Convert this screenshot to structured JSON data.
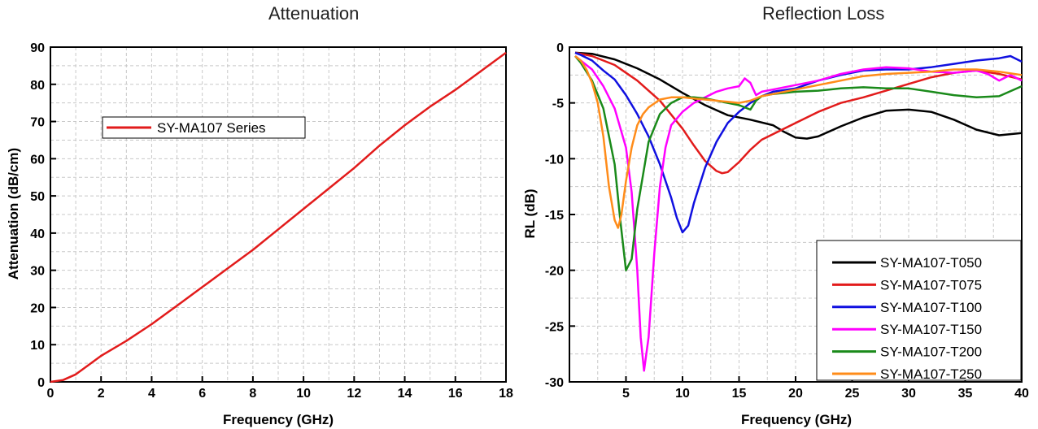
{
  "chart_data": [
    {
      "type": "line",
      "title": "Attenuation",
      "xlabel": "Frequency (GHz)",
      "ylabel": "Attenuation (dB/cm)",
      "xlim": [
        0,
        18
      ],
      "ylim": [
        0,
        90
      ],
      "xticks": [
        "0",
        "2",
        "4",
        "6",
        "8",
        "10",
        "12",
        "14",
        "16",
        "18"
      ],
      "yticks": [
        "0",
        "10",
        "20",
        "30",
        "40",
        "50",
        "60",
        "70",
        "80",
        "90"
      ],
      "grid": true,
      "legend_position": "top-left",
      "series": [
        {
          "name": "SY-MA107 Series",
          "color": "#e21b1b",
          "x": [
            0,
            0.5,
            1,
            1.5,
            2,
            3,
            4,
            5,
            6,
            7,
            8,
            9,
            10,
            11,
            12,
            13,
            14,
            15,
            16,
            17,
            18
          ],
          "y": [
            0,
            0.5,
            2,
            4.5,
            7,
            11,
            15.5,
            20.5,
            25.5,
            30.5,
            35.5,
            41,
            46.5,
            52,
            57.5,
            63.5,
            69,
            74,
            78.5,
            83.5,
            88.5
          ]
        }
      ]
    },
    {
      "type": "line",
      "title": "Reflection Loss",
      "xlabel": "Frequency (GHz)",
      "ylabel": "RL (dB)",
      "xlim": [
        0,
        40
      ],
      "ylim": [
        -30,
        0
      ],
      "xticks": [
        "5",
        "10",
        "15",
        "20",
        "25",
        "30",
        "35",
        "40"
      ],
      "yticks": [
        "0",
        "-5",
        "-10",
        "-15",
        "-20",
        "-25",
        "-30"
      ],
      "grid": true,
      "legend_position": "bottom-right",
      "series": [
        {
          "name": "SY-MA107-T050",
          "color": "#000000",
          "x": [
            0.5,
            2,
            4,
            6,
            8,
            10,
            12,
            14,
            16,
            18,
            19,
            20,
            21,
            22,
            24,
            26,
            28,
            30,
            32,
            34,
            36,
            38,
            40
          ],
          "y": [
            -0.5,
            -0.6,
            -1.1,
            -1.9,
            -2.9,
            -4.1,
            -5.2,
            -6.1,
            -6.5,
            -7.0,
            -7.6,
            -8.1,
            -8.2,
            -8.0,
            -7.1,
            -6.3,
            -5.7,
            -5.6,
            -5.8,
            -6.5,
            -7.4,
            -7.9,
            -7.7
          ]
        },
        {
          "name": "SY-MA107-T075",
          "color": "#e21b1b",
          "x": [
            0.5,
            2,
            4,
            6,
            8,
            10,
            11,
            12,
            13,
            13.5,
            14,
            15,
            16,
            17,
            18,
            20,
            22,
            24,
            26,
            28,
            30,
            32,
            34,
            36,
            38,
            40
          ],
          "y": [
            -0.5,
            -0.8,
            -1.6,
            -3.0,
            -4.8,
            -7.3,
            -8.8,
            -10.2,
            -11.1,
            -11.3,
            -11.2,
            -10.3,
            -9.2,
            -8.3,
            -7.8,
            -6.8,
            -5.8,
            -5.0,
            -4.5,
            -3.9,
            -3.3,
            -2.7,
            -2.3,
            -2.1,
            -2.4,
            -2.9
          ]
        },
        {
          "name": "SY-MA107-T100",
          "color": "#1010e0",
          "x": [
            0.5,
            1,
            2,
            3,
            4,
            5,
            6,
            7,
            8,
            9,
            9.5,
            10,
            10.5,
            11,
            12,
            13,
            14,
            15,
            16,
            17,
            18,
            20,
            22,
            24,
            26,
            28,
            30,
            32,
            34,
            36,
            38,
            39,
            40
          ],
          "y": [
            -0.5,
            -0.7,
            -1.2,
            -2.1,
            -2.9,
            -4.3,
            -6.0,
            -8.0,
            -10.5,
            -13.5,
            -15.3,
            -16.6,
            -16.0,
            -14.0,
            -10.8,
            -8.5,
            -6.8,
            -5.8,
            -5.0,
            -4.4,
            -4.0,
            -3.7,
            -3.0,
            -2.5,
            -2.1,
            -2.0,
            -2.0,
            -1.8,
            -1.5,
            -1.2,
            -1.0,
            -0.8,
            -1.3
          ]
        },
        {
          "name": "SY-MA107-T150",
          "color": "#ff00ff",
          "x": [
            0.5,
            1,
            2,
            3,
            4,
            5,
            5.5,
            6,
            6.3,
            6.6,
            7,
            7.5,
            8,
            8.5,
            9,
            10,
            11,
            12,
            13,
            14,
            15,
            15.5,
            16,
            16.5,
            17,
            18,
            20,
            22,
            24,
            26,
            28,
            30,
            32,
            34,
            36,
            37,
            38,
            39,
            40
          ],
          "y": [
            -0.8,
            -1.2,
            -2.0,
            -3.5,
            -5.5,
            -9.0,
            -13.0,
            -20.0,
            -26.0,
            -29.0,
            -26.0,
            -18.5,
            -12.5,
            -9.0,
            -7.0,
            -5.8,
            -5.0,
            -4.5,
            -4.0,
            -3.7,
            -3.5,
            -2.8,
            -3.2,
            -4.3,
            -4.0,
            -3.8,
            -3.4,
            -3.0,
            -2.4,
            -2.0,
            -1.8,
            -1.9,
            -2.2,
            -2.3,
            -2.1,
            -2.4,
            -3.0,
            -2.5,
            -3.0
          ]
        },
        {
          "name": "SY-MA107-T200",
          "color": "#1a8a1a",
          "x": [
            0.5,
            1,
            2,
            3,
            4,
            4.5,
            5,
            5.5,
            6,
            7,
            8,
            9,
            10,
            11,
            12,
            13,
            14,
            15,
            16,
            16.5,
            17,
            18,
            20,
            22,
            24,
            26,
            28,
            30,
            32,
            34,
            36,
            38,
            40
          ],
          "y": [
            -0.8,
            -1.4,
            -3.0,
            -5.5,
            -10.5,
            -15.5,
            -20.0,
            -19.0,
            -14.5,
            -8.5,
            -6.0,
            -5.0,
            -4.5,
            -4.5,
            -4.6,
            -4.8,
            -5.0,
            -5.2,
            -5.6,
            -4.8,
            -4.4,
            -4.2,
            -4.0,
            -3.9,
            -3.7,
            -3.6,
            -3.7,
            -3.7,
            -4.0,
            -4.3,
            -4.5,
            -4.4,
            -3.5
          ]
        },
        {
          "name": "SY-MA107-T250",
          "color": "#ff8c1a",
          "x": [
            0.5,
            1,
            1.5,
            2,
            2.5,
            3,
            3.5,
            4,
            4.3,
            4.6,
            5,
            5.5,
            6,
            6.5,
            7,
            8,
            9,
            10,
            11,
            12,
            13,
            14,
            15,
            16,
            17,
            18,
            20,
            22,
            24,
            26,
            28,
            30,
            32,
            34,
            36,
            38,
            40
          ],
          "y": [
            -0.8,
            -1.2,
            -2.0,
            -3.2,
            -5.0,
            -8.0,
            -12.5,
            -15.5,
            -16.2,
            -15.0,
            -12.0,
            -9.0,
            -7.0,
            -6.0,
            -5.4,
            -4.7,
            -4.5,
            -4.5,
            -4.6,
            -4.7,
            -4.8,
            -4.9,
            -5.0,
            -4.8,
            -4.4,
            -4.2,
            -3.8,
            -3.4,
            -3.0,
            -2.6,
            -2.4,
            -2.3,
            -2.2,
            -2.0,
            -2.0,
            -2.2,
            -2.5
          ]
        }
      ]
    }
  ]
}
